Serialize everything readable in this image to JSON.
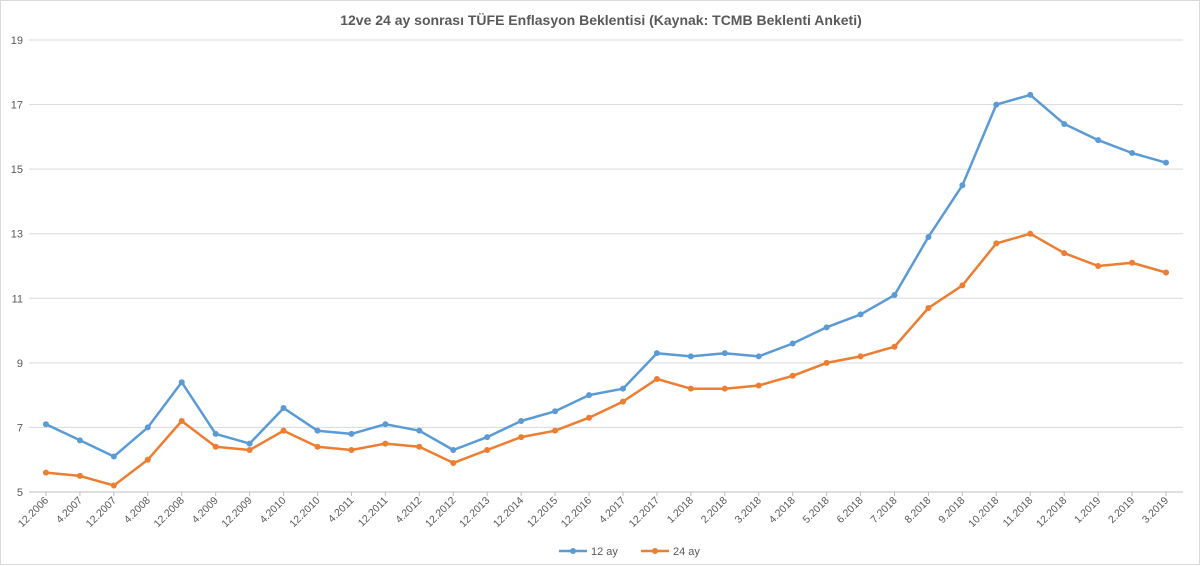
{
  "chart_data": {
    "type": "line",
    "title": "12ve 24 ay sonrası TÜFE Enflasyon Beklentisi (Kaynak: TCMB Beklenti Anketi)",
    "xlabel": "",
    "ylabel": "",
    "ylim": [
      5,
      19
    ],
    "yticks": [
      5,
      7,
      9,
      11,
      13,
      15,
      17,
      19
    ],
    "grid": true,
    "legend_position": "bottom",
    "categories": [
      "12.2006",
      "4.2007",
      "12.2007",
      "4.2008",
      "12.2008",
      "4.2009",
      "12.2009",
      "4.2010",
      "12.2010",
      "4.2011",
      "12.2011",
      "4.2012",
      "12.2012",
      "12.2013",
      "12.2014",
      "12.2015",
      "12.2016",
      "4.2017",
      "12.2017",
      "1.2018",
      "2.2018",
      "3.2018",
      "4.2018",
      "5.2018",
      "6.2018",
      "7.2018",
      "8.2018",
      "9.2018",
      "10.2018",
      "11.2018",
      "12.2018",
      "1.2019",
      "2.2019",
      "3.2019"
    ],
    "series": [
      {
        "name": "12 ay",
        "color": "#5b9bd5",
        "values": [
          7.1,
          6.6,
          6.1,
          7.0,
          8.4,
          6.8,
          6.5,
          7.6,
          6.9,
          6.8,
          7.1,
          6.9,
          6.3,
          6.7,
          7.2,
          7.5,
          8.0,
          8.2,
          9.3,
          9.2,
          9.3,
          9.2,
          9.6,
          10.1,
          10.5,
          11.1,
          12.9,
          14.5,
          17.0,
          17.3,
          16.4,
          15.9,
          15.5,
          15.2
        ]
      },
      {
        "name": "24 ay",
        "color": "#ed7d31",
        "values": [
          5.6,
          5.5,
          5.2,
          6.0,
          7.2,
          6.4,
          6.3,
          6.9,
          6.4,
          6.3,
          6.5,
          6.4,
          5.9,
          6.3,
          6.7,
          6.9,
          7.3,
          7.8,
          8.5,
          8.2,
          8.2,
          8.3,
          8.6,
          9.0,
          9.2,
          9.5,
          10.7,
          11.4,
          12.7,
          13.0,
          12.4,
          12.0,
          12.1,
          11.8
        ]
      }
    ]
  }
}
